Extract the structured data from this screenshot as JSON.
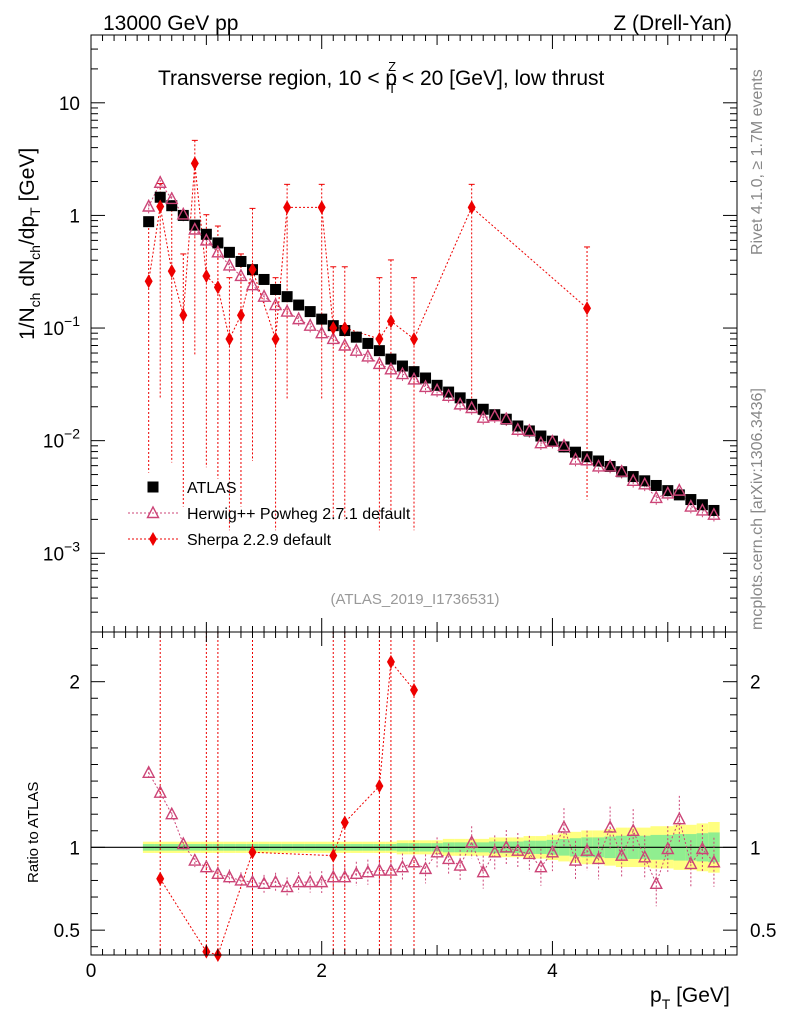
{
  "header": {
    "left": "13000 GeV pp",
    "right": "Z (Drell-Yan)",
    "title_part1": "Transverse region, 10 < p",
    "title_sup": "Z",
    "title_sub": "T",
    "title_part2": " < 20 [GeV], low thrust"
  },
  "side_labels": {
    "rivet": "Rivet 4.1.0, ≥ 1.7M events",
    "mcplots": "mcplots.cern.ch [arXiv:1306.3436]"
  },
  "watermark": "(ATLAS_2019_I1736531)",
  "colors": {
    "atlas": "#000000",
    "herwig": "#cc4477",
    "sherpa": "#ee0000",
    "band_inner": "#90ee90",
    "band_outer": "#ffff80"
  },
  "chart_data": [
    {
      "type": "scatter",
      "panel": "main",
      "title": "Transverse region, 10 < pT(Z) < 20 [GeV], low thrust",
      "xlabel": "p_T [GeV]",
      "ylabel": "1/N_ch dN_ch/dp_T [GeV]",
      "yscale": "log",
      "xlim": [
        0,
        5.6
      ],
      "ylim": [
        0.0002,
        40
      ],
      "ytick_labels": [
        "10^-3",
        "10^-2",
        "10^-1",
        "1",
        "10"
      ],
      "legend": [
        "ATLAS",
        "Herwig++ Powheg 2.7.1 default",
        "Sherpa 2.2.9 default"
      ],
      "legend_position": "lower-left",
      "series": [
        {
          "name": "ATLAS",
          "x": [
            0.5,
            0.6,
            0.7,
            0.8,
            0.9,
            1.0,
            1.1,
            1.2,
            1.3,
            1.4,
            1.5,
            1.6,
            1.7,
            1.8,
            1.9,
            2.0,
            2.1,
            2.2,
            2.3,
            2.4,
            2.5,
            2.6,
            2.7,
            2.8,
            2.9,
            3.0,
            3.1,
            3.2,
            3.3,
            3.4,
            3.5,
            3.6,
            3.7,
            3.8,
            3.9,
            4.0,
            4.1,
            4.2,
            4.3,
            4.4,
            4.5,
            4.6,
            4.7,
            4.8,
            4.9,
            5.0,
            5.1,
            5.2,
            5.3,
            5.4
          ],
          "y": [
            0.88,
            1.45,
            1.22,
            1.0,
            0.82,
            0.68,
            0.57,
            0.47,
            0.39,
            0.33,
            0.27,
            0.22,
            0.19,
            0.16,
            0.14,
            0.12,
            0.105,
            0.095,
            0.083,
            0.073,
            0.063,
            0.053,
            0.046,
            0.041,
            0.036,
            0.031,
            0.027,
            0.024,
            0.021,
            0.019,
            0.017,
            0.0155,
            0.0135,
            0.0122,
            0.011,
            0.0099,
            0.0088,
            0.0079,
            0.0072,
            0.0066,
            0.0059,
            0.0053,
            0.0048,
            0.0044,
            0.004,
            0.0036,
            0.0033,
            0.003,
            0.0027,
            0.0024
          ]
        },
        {
          "name": "Herwig++ Powheg 2.7.1 default",
          "x": [
            0.5,
            0.6,
            0.7,
            0.8,
            0.9,
            1.0,
            1.1,
            1.2,
            1.3,
            1.4,
            1.5,
            1.6,
            1.7,
            1.8,
            1.9,
            2.0,
            2.1,
            2.2,
            2.3,
            2.4,
            2.5,
            2.6,
            2.7,
            2.8,
            2.9,
            3.0,
            3.1,
            3.2,
            3.3,
            3.4,
            3.5,
            3.6,
            3.7,
            3.8,
            3.9,
            4.0,
            4.1,
            4.2,
            4.3,
            4.4,
            4.5,
            4.6,
            4.7,
            4.8,
            4.9,
            5.0,
            5.1,
            5.2,
            5.3,
            5.4
          ],
          "y": [
            1.2,
            1.95,
            1.4,
            1.02,
            0.75,
            0.6,
            0.47,
            0.36,
            0.29,
            0.24,
            0.19,
            0.16,
            0.14,
            0.12,
            0.105,
            0.09,
            0.08,
            0.07,
            0.063,
            0.056,
            0.048,
            0.043,
            0.039,
            0.035,
            0.03,
            0.028,
            0.025,
            0.021,
            0.0195,
            0.016,
            0.0165,
            0.0155,
            0.0125,
            0.0122,
            0.0095,
            0.0098,
            0.009,
            0.0068,
            0.0067,
            0.0059,
            0.0059,
            0.0053,
            0.0044,
            0.0041,
            0.0031,
            0.0034,
            0.0036,
            0.0026,
            0.0024,
            0.0022
          ]
        },
        {
          "name": "Sherpa 2.2.9 default",
          "x": [
            0.5,
            0.6,
            0.7,
            0.8,
            0.9,
            1.0,
            1.1,
            1.2,
            1.3,
            1.4,
            1.6,
            1.7,
            2.0,
            2.1,
            2.2,
            2.5,
            2.6,
            2.8,
            3.3,
            4.3
          ],
          "y": [
            0.26,
            1.2,
            0.32,
            0.13,
            2.9,
            0.29,
            0.23,
            0.08,
            0.13,
            0.33,
            0.08,
            1.18,
            1.18,
            0.1,
            0.1,
            0.08,
            0.115,
            0.08,
            1.18,
            0.15
          ]
        }
      ]
    },
    {
      "type": "scatter",
      "panel": "ratio",
      "ylabel": "Ratio to ATLAS",
      "xlabel": "p_T [GeV]",
      "xlim": [
        0,
        5.6
      ],
      "ylim": [
        0.35,
        2.3
      ],
      "ytick_labels": [
        "0.5",
        "1",
        "2"
      ],
      "xtick_labels": [
        "0",
        "2",
        "4"
      ],
      "series": [
        {
          "name": "Herwig++ Powheg 2.7.1 default",
          "x": [
            0.5,
            0.6,
            0.7,
            0.8,
            0.9,
            1.0,
            1.1,
            1.2,
            1.3,
            1.4,
            1.5,
            1.6,
            1.7,
            1.8,
            1.9,
            2.0,
            2.1,
            2.2,
            2.3,
            2.4,
            2.5,
            2.6,
            2.7,
            2.8,
            2.9,
            3.0,
            3.1,
            3.2,
            3.3,
            3.4,
            3.5,
            3.6,
            3.7,
            3.8,
            3.9,
            4.0,
            4.1,
            4.2,
            4.3,
            4.4,
            4.5,
            4.6,
            4.7,
            4.8,
            4.9,
            5.0,
            5.1,
            5.2,
            5.3,
            5.4
          ],
          "y": [
            1.45,
            1.33,
            1.2,
            1.02,
            0.92,
            0.88,
            0.84,
            0.82,
            0.8,
            0.79,
            0.78,
            0.79,
            0.76,
            0.79,
            0.79,
            0.79,
            0.82,
            0.82,
            0.84,
            0.85,
            0.86,
            0.86,
            0.88,
            0.91,
            0.87,
            0.97,
            0.93,
            0.89,
            1.03,
            0.85,
            0.97,
            1.0,
            0.98,
            0.96,
            0.88,
            0.97,
            1.12,
            0.92,
            0.98,
            0.93,
            1.12,
            0.95,
            1.1,
            0.94,
            0.78,
            0.99,
            1.17,
            0.9,
            0.99,
            0.91
          ]
        },
        {
          "name": "Sherpa 2.2.9 default",
          "x": [
            0.6,
            1.0,
            1.1,
            1.4,
            2.1,
            2.2,
            2.5,
            2.6,
            2.8
          ],
          "y": [
            0.81,
            0.37,
            0.35,
            0.97,
            0.95,
            1.15,
            1.37,
            2.12,
            1.95
          ]
        }
      ],
      "atlas_band_halfwidth": [
        0.02,
        0.02,
        0.02,
        0.02,
        0.02,
        0.02,
        0.02,
        0.02,
        0.02,
        0.02,
        0.02,
        0.02,
        0.02,
        0.02,
        0.02,
        0.02,
        0.02,
        0.02,
        0.02,
        0.02,
        0.02,
        0.02,
        0.025,
        0.025,
        0.025,
        0.025,
        0.03,
        0.03,
        0.03,
        0.03,
        0.035,
        0.035,
        0.035,
        0.04,
        0.04,
        0.045,
        0.05,
        0.055,
        0.06,
        0.06,
        0.065,
        0.07,
        0.07,
        0.07,
        0.075,
        0.075,
        0.08,
        0.08,
        0.085,
        0.09
      ]
    }
  ]
}
